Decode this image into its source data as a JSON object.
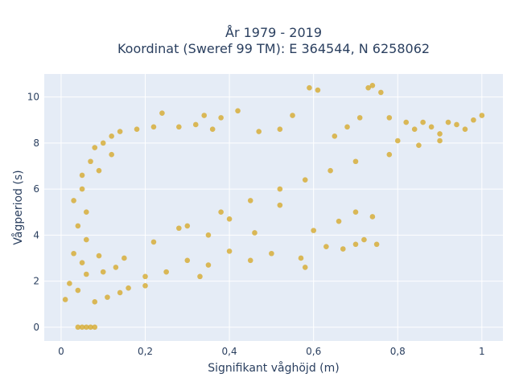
{
  "chart_data": {
    "type": "scatter",
    "title_lines": [
      "År 1979 - 2019",
      "Koordinat (Sweref 99 TM): E 364544, N 6258062"
    ],
    "xlabel": "Signifikant våghöjd (m)",
    "ylabel": "Vågperiod (s)",
    "xlim": [
      -0.04,
      1.05
    ],
    "ylim": [
      -0.6,
      11
    ],
    "x_ticks": [
      0,
      0.2,
      0.4,
      0.6,
      0.8,
      1
    ],
    "x_tick_labels": [
      "0",
      "0,2",
      "0,4",
      "0,6",
      "0,8",
      "1"
    ],
    "y_ticks": [
      0,
      2,
      4,
      6,
      8,
      10
    ],
    "y_tick_labels": [
      "0",
      "2",
      "4",
      "6",
      "8",
      "10"
    ],
    "grid": true,
    "legend": "none",
    "marker_color": "#d4a520",
    "background_color": "#e5ecf6",
    "series": [
      {
        "points": [
          [
            0.04,
            0.0
          ],
          [
            0.05,
            0.0
          ],
          [
            0.06,
            0.0
          ],
          [
            0.07,
            0.0
          ],
          [
            0.08,
            0.0
          ],
          [
            0.01,
            1.2
          ],
          [
            0.02,
            1.9
          ],
          [
            0.03,
            3.2
          ],
          [
            0.03,
            5.5
          ],
          [
            0.04,
            1.6
          ],
          [
            0.04,
            4.4
          ],
          [
            0.05,
            6.6
          ],
          [
            0.06,
            2.3
          ],
          [
            0.07,
            7.2
          ],
          [
            0.08,
            1.1
          ],
          [
            0.08,
            7.8
          ],
          [
            0.09,
            3.1
          ],
          [
            0.1,
            8.0
          ],
          [
            0.11,
            1.3
          ],
          [
            0.12,
            8.3
          ],
          [
            0.13,
            2.6
          ],
          [
            0.14,
            8.5
          ],
          [
            0.16,
            1.7
          ],
          [
            0.18,
            8.6
          ],
          [
            0.2,
            2.2
          ],
          [
            0.22,
            8.7
          ],
          [
            0.24,
            9.3
          ],
          [
            0.25,
            2.4
          ],
          [
            0.28,
            8.7
          ],
          [
            0.3,
            2.9
          ],
          [
            0.32,
            8.8
          ],
          [
            0.34,
            9.2
          ],
          [
            0.35,
            2.7
          ],
          [
            0.36,
            8.6
          ],
          [
            0.38,
            9.1
          ],
          [
            0.4,
            3.3
          ],
          [
            0.42,
            9.4
          ],
          [
            0.45,
            2.9
          ],
          [
            0.47,
            8.5
          ],
          [
            0.5,
            3.2
          ],
          [
            0.52,
            8.6
          ],
          [
            0.55,
            9.2
          ],
          [
            0.57,
            3.0
          ],
          [
            0.59,
            10.4
          ],
          [
            0.61,
            10.3
          ],
          [
            0.63,
            3.5
          ],
          [
            0.65,
            8.3
          ],
          [
            0.67,
            3.4
          ],
          [
            0.68,
            8.7
          ],
          [
            0.7,
            3.6
          ],
          [
            0.71,
            9.1
          ],
          [
            0.72,
            3.8
          ],
          [
            0.73,
            10.4
          ],
          [
            0.74,
            10.5
          ],
          [
            0.75,
            3.6
          ],
          [
            0.76,
            10.2
          ],
          [
            0.78,
            9.1
          ],
          [
            0.8,
            8.1
          ],
          [
            0.82,
            8.9
          ],
          [
            0.84,
            8.6
          ],
          [
            0.86,
            8.9
          ],
          [
            0.88,
            8.7
          ],
          [
            0.9,
            8.4
          ],
          [
            0.92,
            8.9
          ],
          [
            0.94,
            8.8
          ],
          [
            0.96,
            8.6
          ],
          [
            0.98,
            9.0
          ],
          [
            1.0,
            9.2
          ],
          [
            0.85,
            7.9
          ],
          [
            0.9,
            8.1
          ],
          [
            0.78,
            7.5
          ],
          [
            0.7,
            7.2
          ],
          [
            0.64,
            6.8
          ],
          [
            0.58,
            6.4
          ],
          [
            0.52,
            6.0
          ],
          [
            0.45,
            5.5
          ],
          [
            0.38,
            5.0
          ],
          [
            0.3,
            4.4
          ],
          [
            0.22,
            3.7
          ],
          [
            0.15,
            3.0
          ],
          [
            0.1,
            2.4
          ],
          [
            0.6,
            4.2
          ],
          [
            0.66,
            4.6
          ],
          [
            0.7,
            5.0
          ],
          [
            0.74,
            4.8
          ],
          [
            0.52,
            5.3
          ],
          [
            0.46,
            4.1
          ],
          [
            0.4,
            4.7
          ],
          [
            0.35,
            4.0
          ],
          [
            0.28,
            4.3
          ],
          [
            0.58,
            2.6
          ],
          [
            0.2,
            1.8
          ],
          [
            0.33,
            2.2
          ],
          [
            0.14,
            1.5
          ],
          [
            0.05,
            2.8
          ],
          [
            0.06,
            3.8
          ],
          [
            0.06,
            5.0
          ],
          [
            0.05,
            6.0
          ],
          [
            0.09,
            6.8
          ],
          [
            0.12,
            7.5
          ]
        ]
      }
    ]
  }
}
